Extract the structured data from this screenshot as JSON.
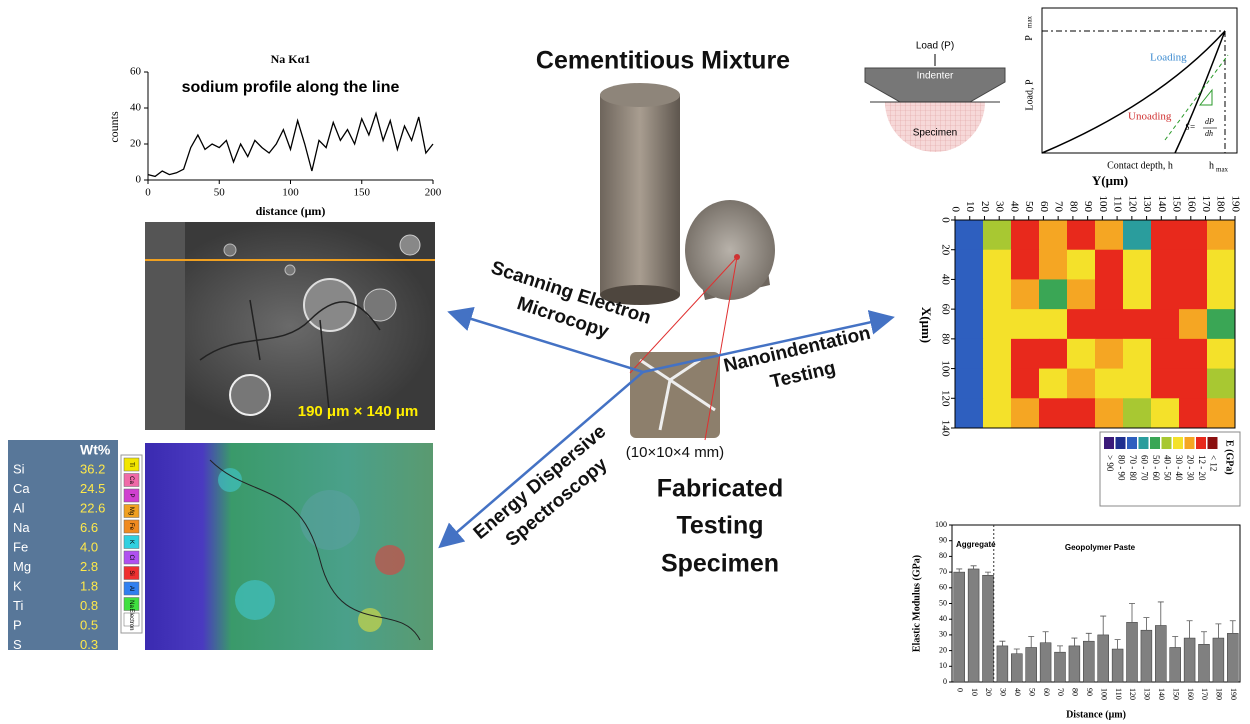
{
  "chart_data": [
    {
      "type": "line",
      "title": "Na Kα1",
      "annotation": "sodium profile along the line",
      "x_label": "distance (μm)",
      "y_label": "counts",
      "color": "#000000",
      "x": [
        0,
        5,
        10,
        15,
        20,
        25,
        30,
        35,
        40,
        45,
        50,
        55,
        60,
        65,
        70,
        75,
        80,
        85,
        90,
        95,
        100,
        105,
        110,
        115,
        120,
        125,
        130,
        135,
        140,
        145,
        150,
        155,
        160,
        165,
        170,
        175,
        180,
        185,
        190,
        195,
        200
      ],
      "values": [
        3,
        2,
        5,
        3,
        4,
        6,
        18,
        25,
        17,
        20,
        18,
        22,
        10,
        20,
        13,
        22,
        18,
        15,
        20,
        28,
        17,
        33,
        20,
        5,
        22,
        18,
        32,
        22,
        28,
        20,
        34,
        25,
        37,
        22,
        33,
        17,
        30,
        22,
        35,
        15,
        20
      ],
      "xlim": [
        0,
        200
      ],
      "xticks": [
        0,
        50,
        100,
        150,
        200
      ],
      "ylim": [
        0,
        60
      ],
      "yticks": [
        0,
        20,
        40,
        60
      ]
    },
    {
      "type": "heatmap",
      "x_label": "Y(μm)",
      "y_label": "X(μm)",
      "xlim": [
        0,
        190
      ],
      "xticks": [
        0,
        10,
        20,
        30,
        40,
        50,
        60,
        70,
        80,
        90,
        100,
        110,
        120,
        130,
        140,
        150,
        160,
        170,
        180,
        190
      ],
      "ylim": [
        0,
        140
      ],
      "yticks": [
        0,
        20,
        40,
        60,
        80,
        100,
        120,
        140
      ],
      "cells": [
        [
          75,
          45,
          15,
          25,
          15,
          25,
          60,
          15,
          15,
          25
        ],
        [
          75,
          35,
          18,
          25,
          35,
          18,
          30,
          15,
          16,
          30
        ],
        [
          75,
          30,
          25,
          55,
          25,
          15,
          35,
          15,
          18,
          35
        ],
        [
          75,
          35,
          35,
          30,
          15,
          18,
          15,
          16,
          25,
          55
        ],
        [
          75,
          30,
          18,
          15,
          35,
          25,
          35,
          18,
          18,
          30
        ],
        [
          75,
          35,
          15,
          35,
          25,
          35,
          30,
          18,
          15,
          45
        ],
        [
          75,
          35,
          25,
          15,
          15,
          25,
          40,
          35,
          18,
          25
        ]
      ],
      "legend": {
        "title": "E (GPa)",
        "items": [
          {
            "label": "> 90",
            "color": "#3b1a7a",
            "range": [
              90,
              null
            ]
          },
          {
            "label": "80 - 90",
            "color": "#1f2f8f",
            "range": [
              80,
              90
            ]
          },
          {
            "label": "70 - 80",
            "color": "#2e5fbf",
            "range": [
              70,
              80
            ]
          },
          {
            "label": "60 - 70",
            "color": "#2a9d9d",
            "range": [
              60,
              70
            ]
          },
          {
            "label": "50 - 60",
            "color": "#3aa655",
            "range": [
              50,
              60
            ]
          },
          {
            "label": "40 - 50",
            "color": "#a8c832",
            "range": [
              40,
              50
            ]
          },
          {
            "label": "30 - 40",
            "color": "#f4e12a",
            "range": [
              30,
              40
            ]
          },
          {
            "label": "20 - 30",
            "color": "#f5a623",
            "range": [
              20,
              30
            ]
          },
          {
            "label": "12 - 20",
            "color": "#e8291c",
            "range": [
              12,
              20
            ]
          },
          {
            "label": "< 12",
            "color": "#8b1010",
            "range": [
              null,
              12
            ]
          }
        ]
      }
    },
    {
      "type": "bar",
      "x_label": "Distance (μm)",
      "y_label": "Elastic Modulus (GPa)",
      "annotations": [
        "Aggregate",
        "Geopolymer Paste"
      ],
      "color": "#808080",
      "categories": [
        "0",
        "10",
        "20",
        "30",
        "40",
        "50",
        "60",
        "70",
        "80",
        "90",
        "100",
        "110",
        "120",
        "130",
        "140",
        "150",
        "160",
        "170",
        "180",
        "190"
      ],
      "values": [
        70,
        72,
        68,
        23,
        18,
        22,
        25,
        19,
        23,
        26,
        30,
        21,
        38,
        33,
        36,
        22,
        28,
        24,
        28,
        31
      ],
      "errors": [
        2,
        2,
        2,
        3,
        3,
        7,
        7,
        4,
        5,
        5,
        12,
        6,
        12,
        8,
        15,
        7,
        11,
        8,
        9,
        8
      ],
      "ylim": [
        0,
        100
      ],
      "yticks": [
        0,
        10,
        20,
        30,
        40,
        50,
        60,
        70,
        80,
        90,
        100
      ]
    }
  ],
  "center": {
    "title": "Cementitious Mixture",
    "sem_label": [
      "Scanning Electron",
      "Microcopy"
    ],
    "eds_label": [
      "Energy Dispersive",
      "Spectroscopy"
    ],
    "nano_label": [
      "Nanoindentation",
      "Testing"
    ],
    "specimen_size": "(10×10×4 mm)",
    "specimen_label": [
      "Fabricated",
      "Testing",
      "Specimen"
    ]
  },
  "sem": {
    "scale_label": "190 μm × 140 μm"
  },
  "eds": {
    "header": "Wt%",
    "rows": [
      [
        "Si",
        "36.2"
      ],
      [
        "Ca",
        "24.5"
      ],
      [
        "Al",
        "22.6"
      ],
      [
        "Na",
        "6.6"
      ],
      [
        "Fe",
        "4.0"
      ],
      [
        "Mg",
        "2.8"
      ],
      [
        "K",
        "1.8"
      ],
      [
        "Ti",
        "0.8"
      ],
      [
        "P",
        "0.5"
      ],
      [
        "S",
        "0.3"
      ]
    ],
    "legend": [
      {
        "label": "Ti",
        "color": "#f2e600"
      },
      {
        "label": "Ca",
        "color": "#f06aa8"
      },
      {
        "label": "P",
        "color": "#d040d0"
      },
      {
        "label": "Mg",
        "color": "#f0a020"
      },
      {
        "label": "Fe",
        "color": "#f08a20"
      },
      {
        "label": "K",
        "color": "#30d0e0"
      },
      {
        "label": "Cl",
        "color": "#b050f0"
      },
      {
        "label": "Si",
        "color": "#f03030"
      },
      {
        "label": "Al",
        "color": "#3080f0"
      },
      {
        "label": "Na",
        "color": "#40e040"
      },
      {
        "label": "Electron",
        "color": "#ffffff"
      }
    ]
  },
  "indentation": {
    "load": "Load (P)",
    "indenter": "Indenter",
    "specimen": "Specimen",
    "y_axis": "Load, P",
    "x_axis": "Contact depth, h",
    "p": "P",
    "p_sub": "max",
    "h": "h",
    "h_sub": "max",
    "loading": "Loading",
    "unloading": "Unoading",
    "s": "S=",
    "dp": "dP",
    "dh": "dh"
  }
}
